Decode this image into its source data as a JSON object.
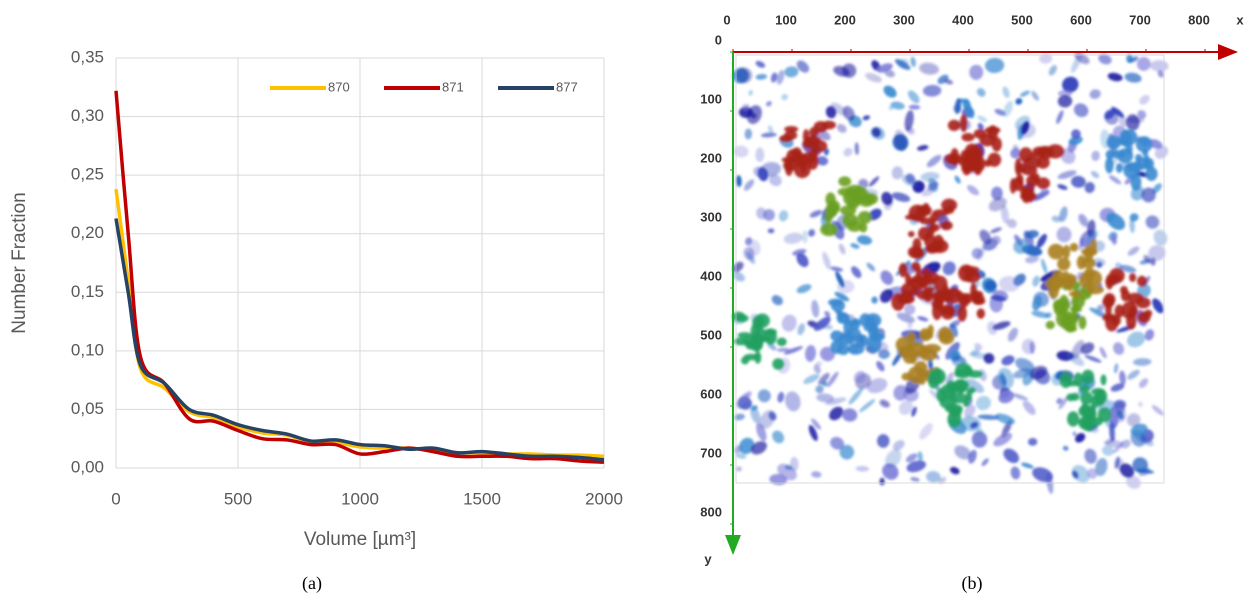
{
  "chart_data": [
    {
      "type": "line",
      "caption": "(a)",
      "x_label": "Volume [µm³]",
      "y_label": "Number Fraction",
      "x": [
        0,
        50,
        100,
        200,
        300,
        400,
        500,
        600,
        700,
        800,
        900,
        1000,
        1100,
        1200,
        1300,
        1400,
        1500,
        1600,
        1700,
        1800,
        1900,
        2000
      ],
      "series": [
        {
          "name": "870",
          "color": "#ffc000",
          "values": [
            0.238,
            0.16,
            0.085,
            0.068,
            0.048,
            0.043,
            0.035,
            0.03,
            0.028,
            0.022,
            0.022,
            0.018,
            0.017,
            0.017,
            0.015,
            0.013,
            0.013,
            0.012,
            0.012,
            0.011,
            0.011,
            0.01
          ]
        },
        {
          "name": "871",
          "color": "#c00000",
          "values": [
            0.322,
            0.2,
            0.095,
            0.072,
            0.042,
            0.04,
            0.032,
            0.025,
            0.024,
            0.02,
            0.02,
            0.012,
            0.014,
            0.017,
            0.014,
            0.01,
            0.01,
            0.01,
            0.008,
            0.008,
            0.006,
            0.005
          ]
        },
        {
          "name": "877",
          "color": "#264264",
          "values": [
            0.213,
            0.15,
            0.088,
            0.072,
            0.05,
            0.045,
            0.037,
            0.032,
            0.029,
            0.023,
            0.024,
            0.02,
            0.019,
            0.016,
            0.017,
            0.013,
            0.014,
            0.012,
            0.01,
            0.01,
            0.009,
            0.007
          ]
        }
      ],
      "xlim": [
        0,
        2000
      ],
      "xticks": [
        0,
        500,
        1000,
        1500,
        2000
      ],
      "ylim": [
        0,
        0.35
      ],
      "yticks": [
        {
          "value": 0,
          "label": "0,00"
        },
        {
          "value": 0.05,
          "label": "0,05"
        },
        {
          "value": 0.1,
          "label": "0,10"
        },
        {
          "value": 0.15,
          "label": "0,15"
        },
        {
          "value": 0.2,
          "label": "0,20"
        },
        {
          "value": 0.25,
          "label": "0,25"
        },
        {
          "value": 0.3,
          "label": "0,30"
        },
        {
          "value": 0.35,
          "label": "0,35"
        }
      ],
      "grid": true,
      "legend": "top-right"
    },
    {
      "type": "image",
      "caption": "(b)",
      "x_label": "x",
      "y_label": "y",
      "xlim": [
        0,
        800
      ],
      "xticks": [
        0,
        100,
        200,
        300,
        400,
        500,
        600,
        700,
        800
      ],
      "ylim": [
        0,
        800
      ],
      "yticks": [
        0,
        100,
        200,
        300,
        400,
        500,
        600,
        700,
        800
      ],
      "x_axis_color": "#c00000",
      "y_axis_color": "#22aa22"
    }
  ]
}
